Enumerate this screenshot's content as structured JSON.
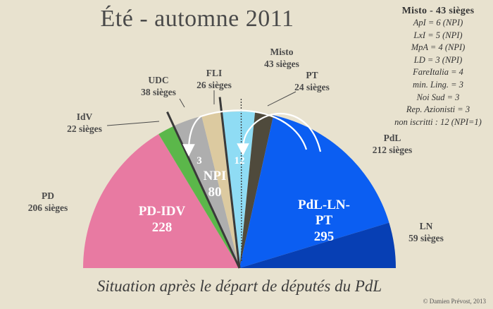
{
  "title": "Été - automne 2011",
  "subtitle": "Situation après le départ de députés du PdL",
  "credit": "© Damien Prévost, 2013",
  "misto": {
    "heading": "Misto - 43 sièges",
    "rows": [
      "ApI = 6 (NPI)",
      "LxI = 5 (NPI)",
      "MpA = 4 (NPI)",
      "LD = 3 (NPI)",
      "FareItalia = 4",
      "min. Ling. = 3",
      "Noi Sud = 3",
      "Rep. Azionisti = 3",
      "non iscritti : 12 (NPI=1)"
    ]
  },
  "chart_data": {
    "type": "pie",
    "layout": "parliament hemicycle",
    "total_seats": 630,
    "series": [
      {
        "name": "PD",
        "label": "PD",
        "seats_text": "206 sièges",
        "value": 206,
        "color": "#e87aa2"
      },
      {
        "name": "IdV",
        "label": "IdV",
        "seats_text": "22 sièges",
        "value": 22,
        "color": "#5bb74a"
      },
      {
        "name": "UDC",
        "label": "UDC",
        "seats_text": "38 sièges",
        "value": 38,
        "color": "#aeaeae"
      },
      {
        "name": "FLI",
        "label": "FLI",
        "seats_text": "26 sièges",
        "value": 26,
        "color": "#dccaa0"
      },
      {
        "name": "Misto",
        "label": "Misto",
        "seats_text": "43 sièges",
        "value": 43,
        "color": "#8fdcf4"
      },
      {
        "name": "PT",
        "label": "PT",
        "seats_text": "24 sièges",
        "value": 24,
        "color": "#4f4a3c"
      },
      {
        "name": "PdL",
        "label": "PdL",
        "seats_text": "212 sièges",
        "value": 212,
        "color": "#0b5ef2"
      },
      {
        "name": "LN",
        "label": "LN",
        "seats_text": "59 sièges",
        "value": 59,
        "color": "#073fb4"
      }
    ],
    "blocs": [
      {
        "name": "PD-IDV",
        "value": "228"
      },
      {
        "name": "NPI",
        "value": "80"
      },
      {
        "name": "PdL-LN-PT",
        "value": "295"
      }
    ],
    "transfers": [
      {
        "label": "3"
      },
      {
        "label": "12"
      }
    ]
  }
}
